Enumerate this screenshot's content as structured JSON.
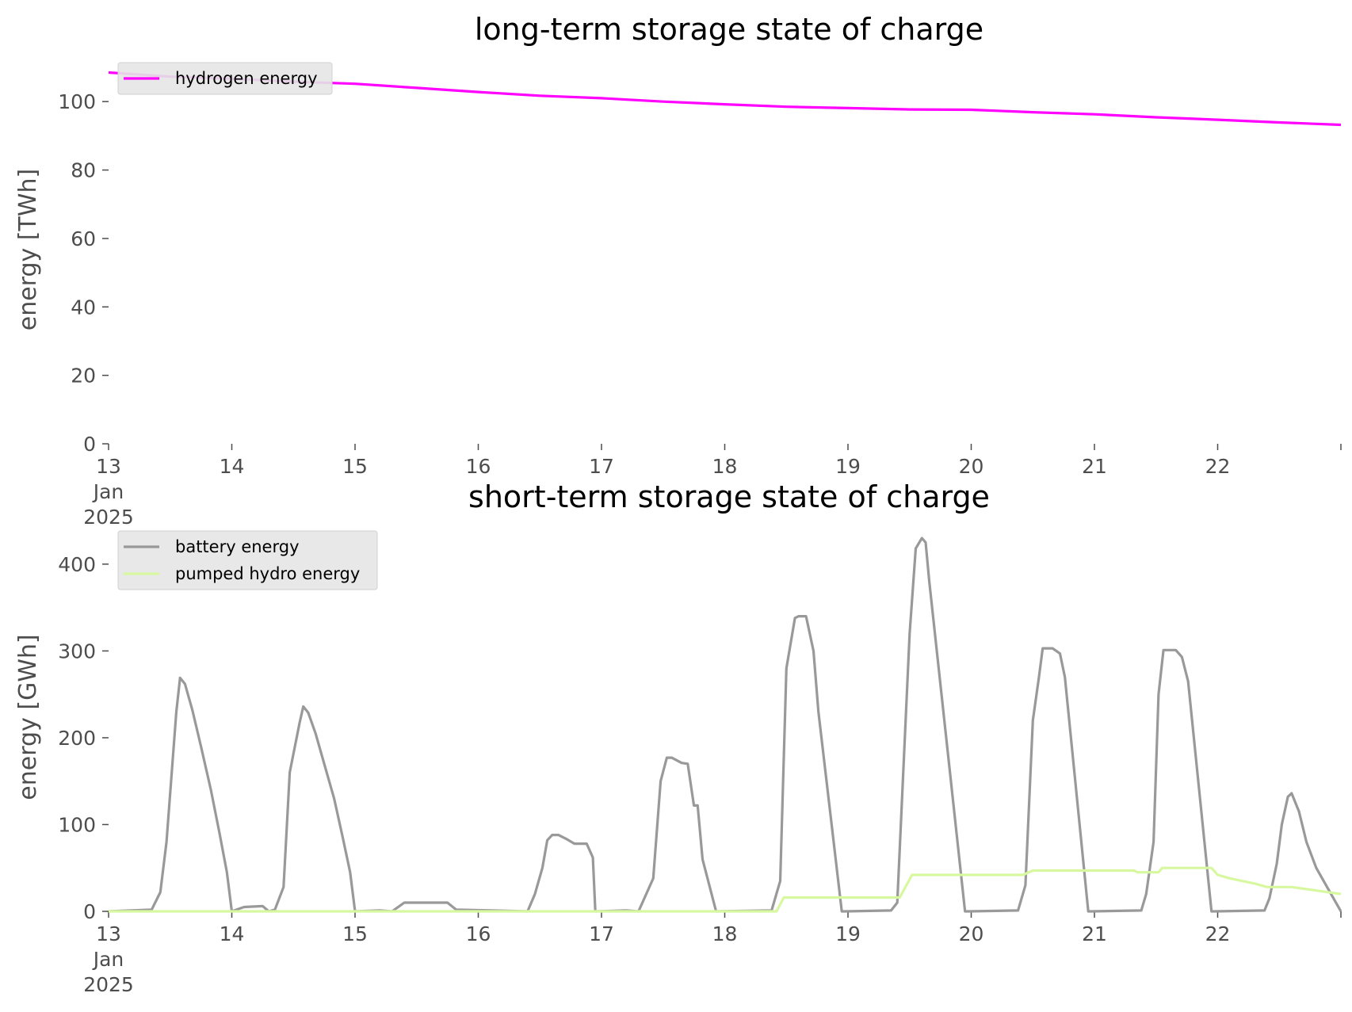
{
  "chart_data": [
    {
      "type": "line",
      "title": "long-term storage state of charge",
      "xlabel": "",
      "ylabel": "energy [TWh]",
      "xlim": [
        13,
        23
      ],
      "ylim": [
        0,
        110
      ],
      "yticks": [
        0,
        20,
        40,
        60,
        80,
        100
      ],
      "xtick_labels": [
        "13\nJan\n2025",
        "14",
        "15",
        "16",
        "17",
        "18",
        "19",
        "20",
        "21",
        "22"
      ],
      "grid": false,
      "legend": "top-left",
      "series": [
        {
          "name": "hydrogen energy",
          "color": "#ff00ff",
          "x": [
            13,
            13.5,
            14,
            14.5,
            15,
            15.5,
            16,
            16.5,
            17,
            17.5,
            18,
            18.5,
            19,
            19.5,
            20,
            20.5,
            21,
            21.5,
            22,
            22.5,
            23
          ],
          "y": [
            108.5,
            107.3,
            106.7,
            105.8,
            105.2,
            104.0,
            102.8,
            101.7,
            101.0,
            100.0,
            99.2,
            98.5,
            98.1,
            97.7,
            97.6,
            96.9,
            96.3,
            95.4,
            94.7,
            93.9,
            93.2
          ]
        }
      ]
    },
    {
      "type": "line",
      "title": "short-term storage state of charge",
      "xlabel": "",
      "ylabel": "energy [GWh]",
      "xlim": [
        13,
        23
      ],
      "ylim": [
        0,
        430
      ],
      "yticks": [
        0,
        100,
        200,
        300,
        400
      ],
      "xtick_labels": [
        "13\nJan\n2025",
        "14",
        "15",
        "16",
        "17",
        "18",
        "19",
        "20",
        "21",
        "22"
      ],
      "grid": false,
      "legend": "top-left",
      "series": [
        {
          "name": "battery energy",
          "color": "#999999",
          "x": [
            13,
            13.35,
            13.42,
            13.47,
            13.55,
            13.58,
            13.62,
            13.68,
            13.75,
            13.83,
            13.9,
            13.96,
            14,
            14.1,
            14.25,
            14.3,
            14.35,
            14.42,
            14.47,
            14.55,
            14.58,
            14.62,
            14.68,
            14.75,
            14.83,
            14.9,
            14.96,
            15,
            15.2,
            15.3,
            15.4,
            15.75,
            15.82,
            16.4,
            16.46,
            16.52,
            16.56,
            16.6,
            16.65,
            16.72,
            16.78,
            16.88,
            16.93,
            16.95,
            17.2,
            17.3,
            17.42,
            17.48,
            17.53,
            17.57,
            17.65,
            17.7,
            17.75,
            17.78,
            17.82,
            17.93,
            18.38,
            18.45,
            18.5,
            18.57,
            18.6,
            18.66,
            18.72,
            18.76,
            18.95,
            18.98,
            19.35,
            19.4,
            19.5,
            19.55,
            19.6,
            19.63,
            19.66,
            19.95,
            19.98,
            20.38,
            20.44,
            20.5,
            20.55,
            20.58,
            20.66,
            20.72,
            20.76,
            20.95,
            20.98,
            21.38,
            21.42,
            21.48,
            21.52,
            21.56,
            21.66,
            21.71,
            21.76,
            21.95,
            21.98,
            22.38,
            22.42,
            22.48,
            22.52,
            22.57,
            22.6,
            22.66,
            22.72,
            22.8,
            22.9,
            23.0
          ],
          "y": [
            0,
            2,
            22,
            80,
            230,
            269,
            262,
            232,
            190,
            140,
            90,
            45,
            0,
            5,
            6,
            0,
            2,
            28,
            160,
            217,
            236,
            229,
            205,
            170,
            130,
            85,
            45,
            0,
            1,
            0,
            10,
            10,
            2,
            0,
            20,
            50,
            82,
            88,
            88,
            83,
            78,
            78,
            62,
            0,
            1,
            0,
            38,
            150,
            177,
            177,
            171,
            170,
            122,
            122,
            60,
            0,
            1,
            35,
            280,
            338,
            340,
            340,
            300,
            230,
            0,
            0,
            1,
            10,
            320,
            418,
            430,
            425,
            380,
            0,
            0,
            1,
            30,
            220,
            270,
            303,
            303,
            297,
            270,
            0,
            0,
            1,
            20,
            80,
            250,
            301,
            301,
            293,
            265,
            0,
            0,
            1,
            15,
            55,
            100,
            132,
            136,
            115,
            80,
            50,
            25,
            0
          ]
        },
        {
          "name": "pumped hydro energy",
          "color": "#d8f8a0",
          "x": [
            13,
            18.42,
            18.48,
            19.42,
            19.52,
            20.42,
            20.5,
            21.32,
            21.35,
            21.52,
            21.55,
            21.95,
            22.0,
            22.1,
            22.2,
            22.3,
            22.4,
            22.6,
            22.7,
            22.8,
            22.9,
            23.0
          ],
          "y": [
            0,
            0,
            16,
            16,
            42,
            42,
            47,
            47,
            45,
            45,
            50,
            50,
            42,
            38,
            35,
            32,
            28,
            28,
            26,
            24,
            22,
            20
          ]
        }
      ]
    }
  ]
}
